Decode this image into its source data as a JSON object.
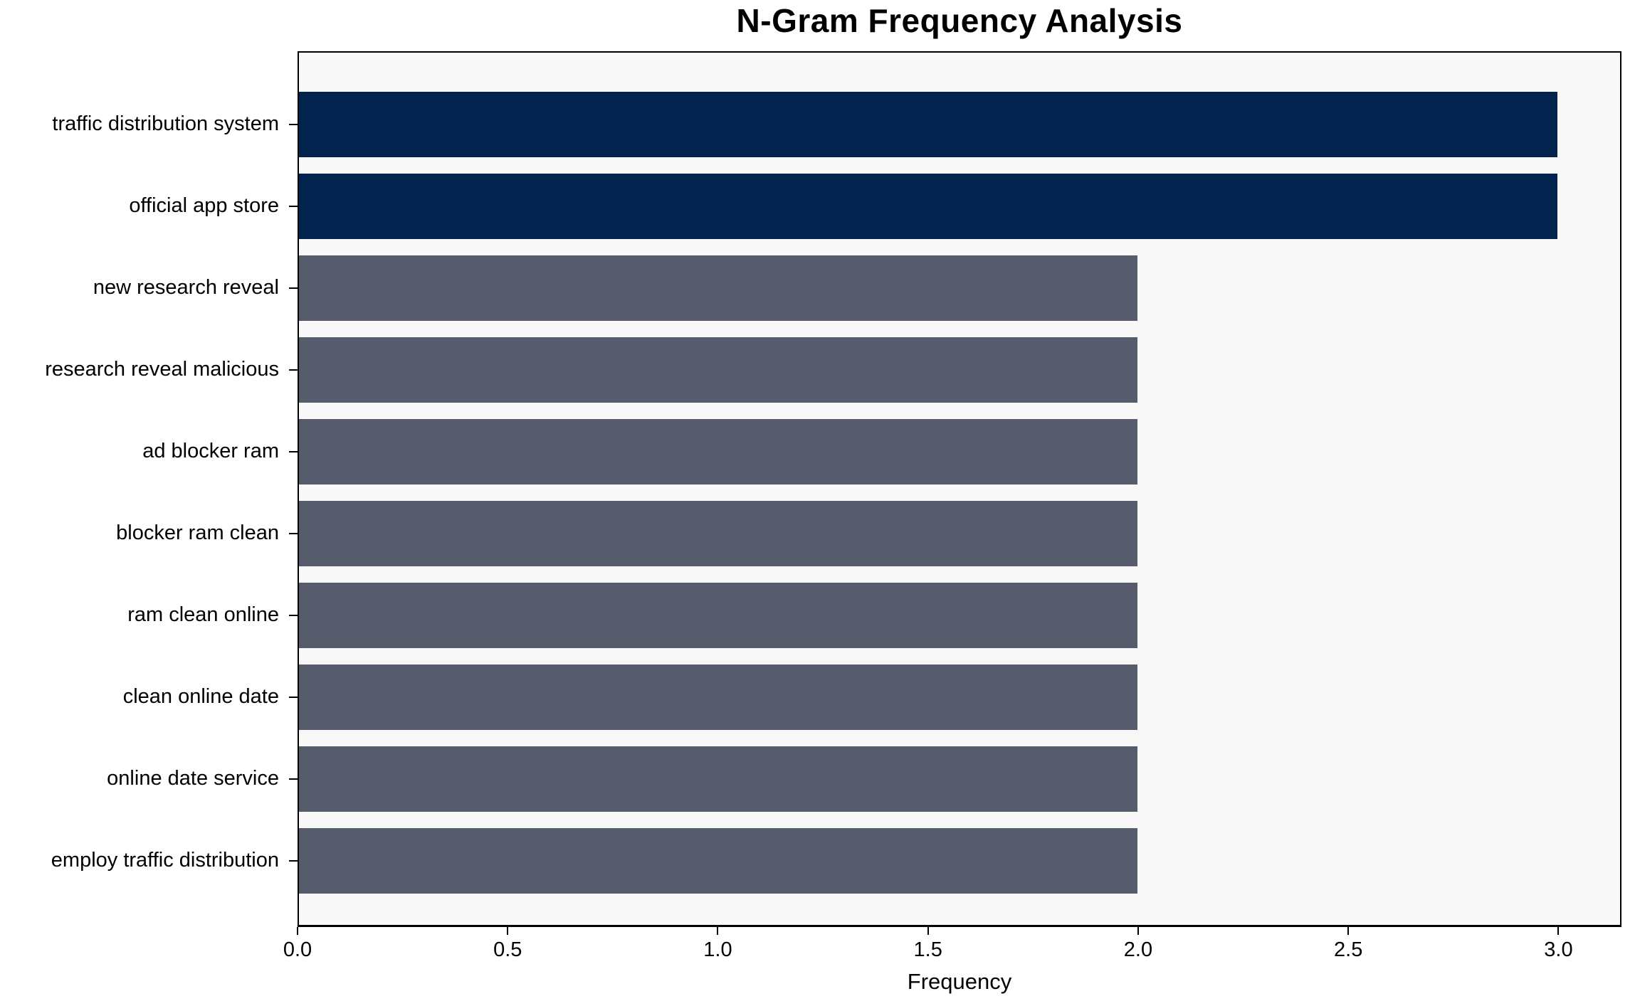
{
  "chart_data": {
    "type": "bar",
    "orientation": "horizontal",
    "title": "N-Gram Frequency Analysis",
    "xlabel": "Frequency",
    "ylabel": "",
    "categories": [
      "traffic distribution system",
      "official app store",
      "new research reveal",
      "research reveal malicious",
      "ad blocker ram",
      "blocker ram clean",
      "ram clean online",
      "clean online date",
      "online date service",
      "employ traffic distribution"
    ],
    "values": [
      3,
      3,
      2,
      2,
      2,
      2,
      2,
      2,
      2,
      2
    ],
    "bar_colors": [
      "#02234d",
      "#02234d",
      "#565c6c",
      "#565c6c",
      "#565c6c",
      "#565c6c",
      "#565c6c",
      "#565c6c",
      "#565c6c",
      "#565c6c"
    ],
    "x_ticks": [
      0,
      0.5,
      1,
      1.5,
      2,
      2.5,
      3
    ],
    "x_tick_labels": [
      "0.0",
      "0.5",
      "1.0",
      "1.5",
      "2.0",
      "2.5",
      "3.0"
    ],
    "xlim": [
      0,
      3.15
    ],
    "grid": false,
    "legend_position": "none",
    "colors": {
      "highlight_bar": "#02234d",
      "default_bar": "#565c6c",
      "plot_background": "#f8f8f8",
      "figure_background": "#ffffff",
      "axis": "#000000",
      "text": "#000000"
    }
  }
}
